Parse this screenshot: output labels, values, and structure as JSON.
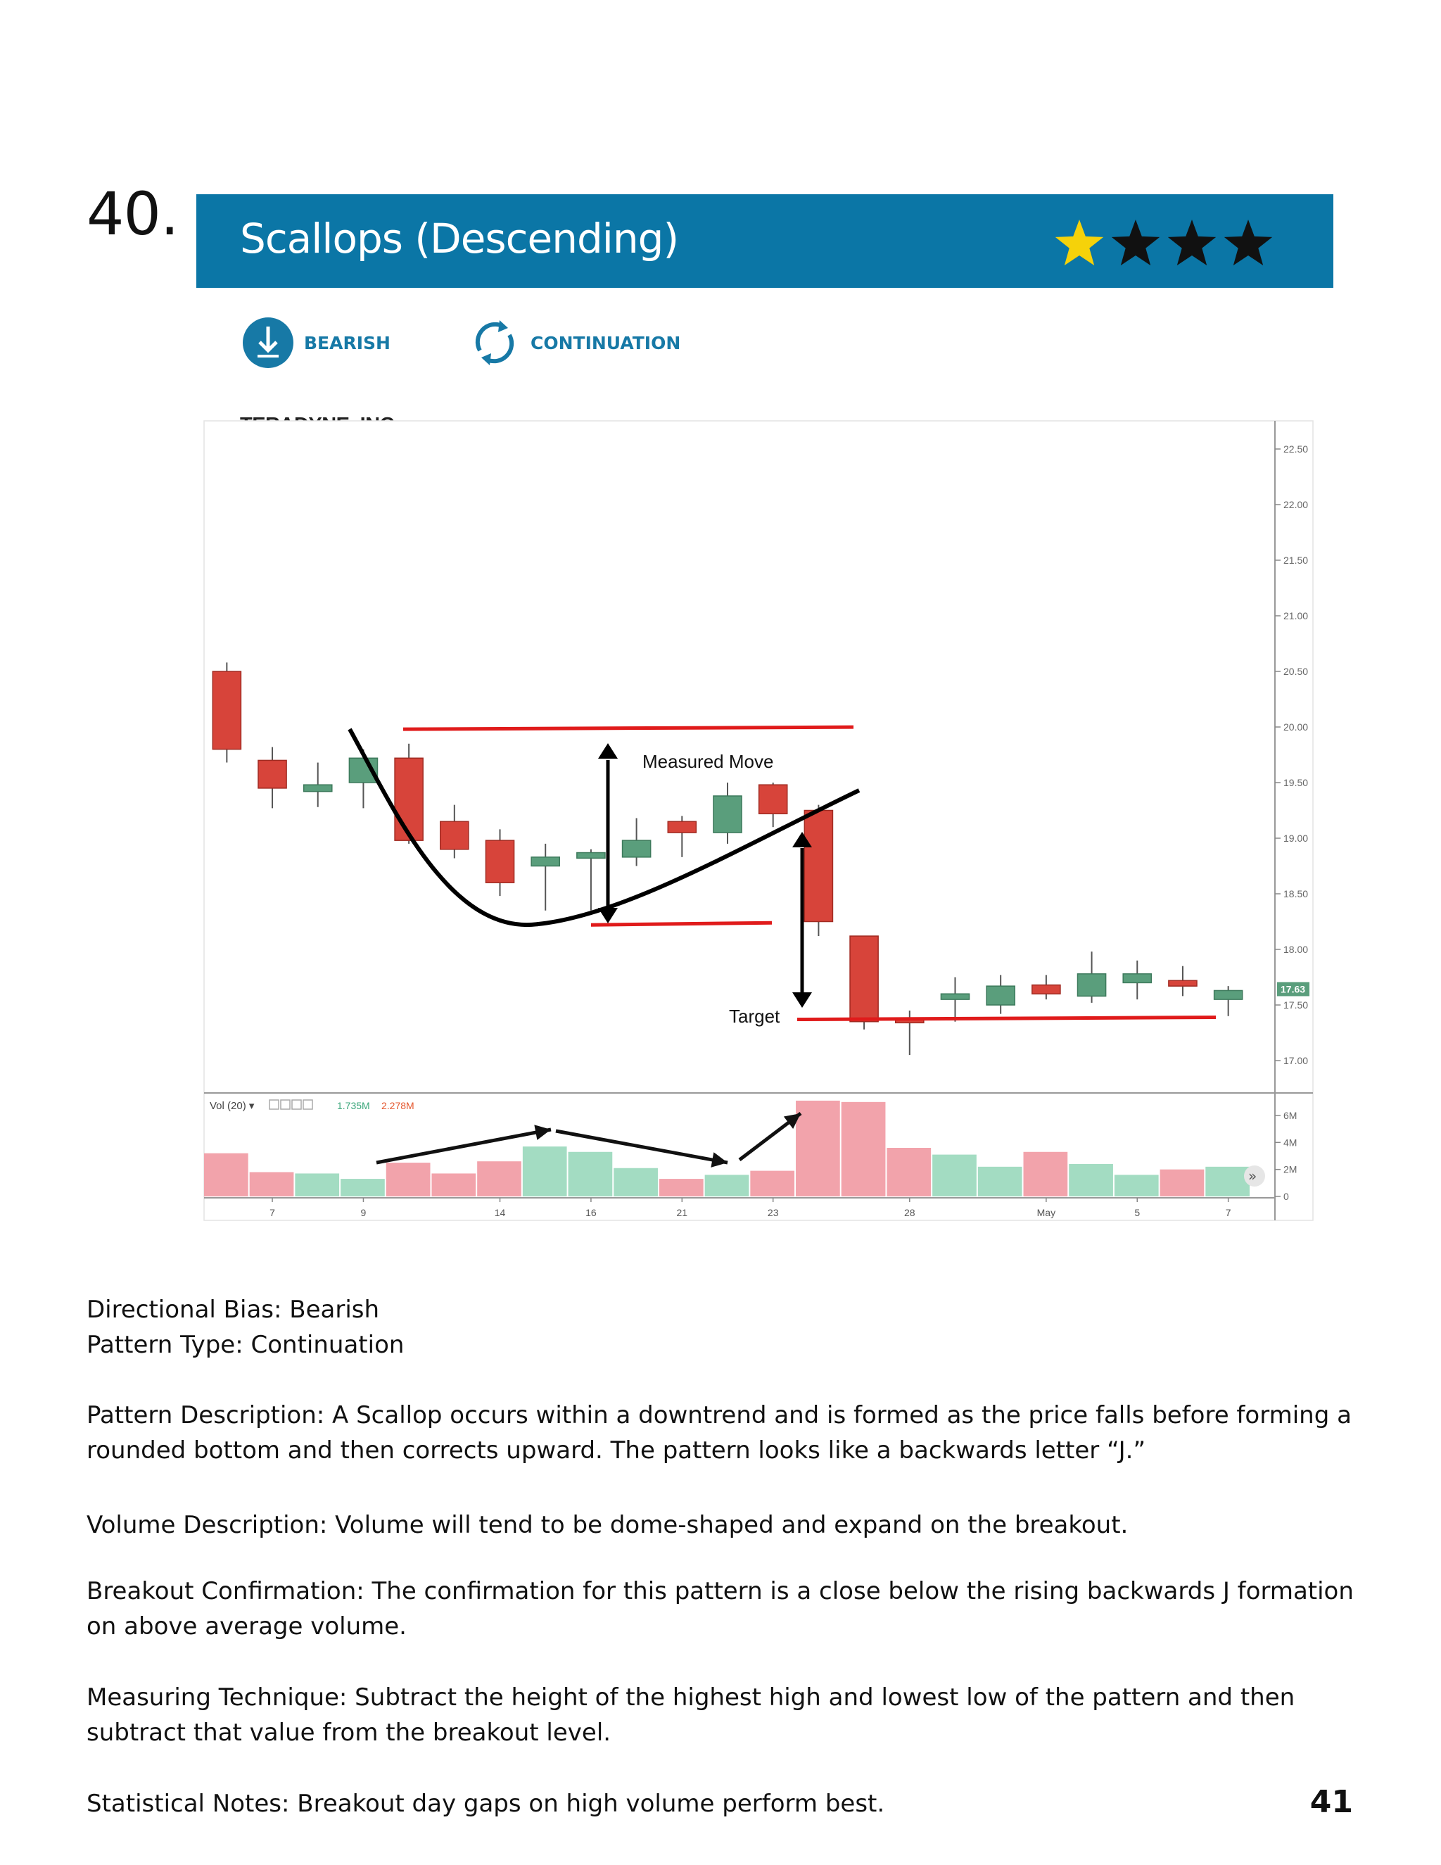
{
  "pattern_number": "40.",
  "title": "Scallops (Descending)",
  "rating": {
    "filled": 1,
    "total": 4,
    "filled_color": "#f5d20a",
    "empty_color": "#111111"
  },
  "tags": [
    {
      "label": "BEARISH",
      "icon": "down-arrow-circle-icon"
    },
    {
      "label": "CONTINUATION",
      "icon": "circular-arrows-icon"
    }
  ],
  "company": "TERADYNE, INC.",
  "colors": {
    "banner": "#0b76a6",
    "up": "#5a9e7c",
    "down": "#d7443a",
    "up_volume": "#a3dcc2",
    "down_volume": "#f2a3ab",
    "annotation": "#e01b1b"
  },
  "chart_data": {
    "type": "candlestick",
    "ylim": [
      16.7,
      22.7
    ],
    "y_ticks": [
      "22.50",
      "22.00",
      "21.50",
      "21.00",
      "20.50",
      "20.00",
      "19.50",
      "19.00",
      "18.50",
      "18.00",
      "17.50",
      "17.00"
    ],
    "y_tick_values": [
      22.5,
      22.0,
      21.5,
      21.0,
      20.5,
      20.0,
      19.5,
      19.0,
      18.5,
      18.0,
      17.5,
      17.0
    ],
    "last_price_label": "17.63",
    "x_labels": [
      {
        "label": "7",
        "index": 1
      },
      {
        "label": "9",
        "index": 3
      },
      {
        "label": "14",
        "index": 6
      },
      {
        "label": "16",
        "index": 8
      },
      {
        "label": "21",
        "index": 10
      },
      {
        "label": "23",
        "index": 12
      },
      {
        "label": "28",
        "index": 15
      },
      {
        "label": "May",
        "index": 18
      },
      {
        "label": "5",
        "index": 20
      },
      {
        "label": "7",
        "index": 22
      }
    ],
    "candles": [
      {
        "open": 20.5,
        "close": 19.8,
        "high": 20.58,
        "low": 19.68
      },
      {
        "open": 19.7,
        "close": 19.45,
        "high": 19.82,
        "low": 19.27
      },
      {
        "open": 19.42,
        "close": 19.48,
        "high": 19.68,
        "low": 19.28
      },
      {
        "open": 19.5,
        "close": 19.72,
        "high": 19.8,
        "low": 19.27
      },
      {
        "open": 19.72,
        "close": 18.98,
        "high": 19.85,
        "low": 18.95
      },
      {
        "open": 19.15,
        "close": 18.9,
        "high": 19.3,
        "low": 18.82
      },
      {
        "open": 18.98,
        "close": 18.6,
        "high": 19.08,
        "low": 18.48
      },
      {
        "open": 18.75,
        "close": 18.83,
        "high": 18.95,
        "low": 18.35
      },
      {
        "open": 18.82,
        "close": 18.87,
        "high": 18.9,
        "low": 18.35
      },
      {
        "open": 18.83,
        "close": 18.98,
        "high": 19.18,
        "low": 18.75
      },
      {
        "open": 19.15,
        "close": 19.05,
        "high": 19.2,
        "low": 18.83
      },
      {
        "open": 19.05,
        "close": 19.38,
        "high": 19.5,
        "low": 18.95
      },
      {
        "open": 19.48,
        "close": 19.22,
        "high": 19.5,
        "low": 19.1
      },
      {
        "open": 19.25,
        "close": 18.25,
        "high": 19.3,
        "low": 18.12
      },
      {
        "open": 18.12,
        "close": 17.35,
        "high": 18.12,
        "low": 17.28
      },
      {
        "open": 17.38,
        "close": 17.34,
        "high": 17.45,
        "low": 17.05
      },
      {
        "open": 17.55,
        "close": 17.6,
        "high": 17.75,
        "low": 17.35
      },
      {
        "open": 17.5,
        "close": 17.67,
        "high": 17.77,
        "low": 17.42
      },
      {
        "open": 17.68,
        "close": 17.6,
        "high": 17.77,
        "low": 17.55
      },
      {
        "open": 17.58,
        "close": 17.78,
        "high": 17.98,
        "low": 17.52
      },
      {
        "open": 17.7,
        "close": 17.78,
        "high": 17.9,
        "low": 17.55
      },
      {
        "open": 17.72,
        "close": 17.67,
        "high": 17.85,
        "low": 17.58
      },
      {
        "open": 17.55,
        "close": 17.63,
        "high": 17.67,
        "low": 17.4
      }
    ],
    "volume": {
      "label": "Vol (20)",
      "value_a": "1.735M",
      "value_b": "2.278M",
      "ylim": [
        0,
        7.2
      ],
      "y_ticks": [
        "6M",
        "4M",
        "2M",
        "0"
      ],
      "y_tick_values": [
        6,
        4,
        2,
        0
      ],
      "bars": [
        {
          "value": 3.2,
          "direction": "down"
        },
        {
          "value": 1.8,
          "direction": "down"
        },
        {
          "value": 1.7,
          "direction": "up"
        },
        {
          "value": 1.3,
          "direction": "up"
        },
        {
          "value": 2.5,
          "direction": "down"
        },
        {
          "value": 1.7,
          "direction": "down"
        },
        {
          "value": 2.6,
          "direction": "down"
        },
        {
          "value": 3.7,
          "direction": "up"
        },
        {
          "value": 3.3,
          "direction": "up"
        },
        {
          "value": 2.1,
          "direction": "up"
        },
        {
          "value": 1.3,
          "direction": "down"
        },
        {
          "value": 1.6,
          "direction": "up"
        },
        {
          "value": 1.9,
          "direction": "down"
        },
        {
          "value": 7.1,
          "direction": "down"
        },
        {
          "value": 7.0,
          "direction": "down"
        },
        {
          "value": 3.6,
          "direction": "down"
        },
        {
          "value": 3.1,
          "direction": "up"
        },
        {
          "value": 2.2,
          "direction": "up"
        },
        {
          "value": 3.3,
          "direction": "down"
        },
        {
          "value": 2.4,
          "direction": "up"
        },
        {
          "value": 1.6,
          "direction": "up"
        },
        {
          "value": 2.0,
          "direction": "down"
        },
        {
          "value": 2.2,
          "direction": "up"
        }
      ]
    },
    "annotations": {
      "measured_move_label": "Measured Move",
      "target_label": "Target",
      "top_line_price": 19.98,
      "bottom_line_price": 18.22,
      "target_line_price": 17.37
    }
  },
  "details": {
    "directional_bias": "Directional Bias: Bearish",
    "pattern_type": "Pattern Type: Continuation",
    "pattern_description": "Pattern Description: A Scallop occurs within a downtrend and is formed as the price falls before forming a rounded bottom and then corrects upward. The pattern looks like a backwards letter “J.”",
    "volume_description": "Volume Description: Volume will tend to be dome-shaped and expand on the breakout.",
    "breakout_confirmation": "Breakout Confirmation: The confirmation for this pattern is a close below the rising backwards J formation on above average volume.",
    "measuring_technique": "Measuring Technique: Subtract the height of the highest high and lowest low of the pattern and then subtract that value from the breakout level.",
    "statistical_notes": "Statistical Notes:  Breakout day gaps on high volume perform best."
  },
  "page_number": "41"
}
